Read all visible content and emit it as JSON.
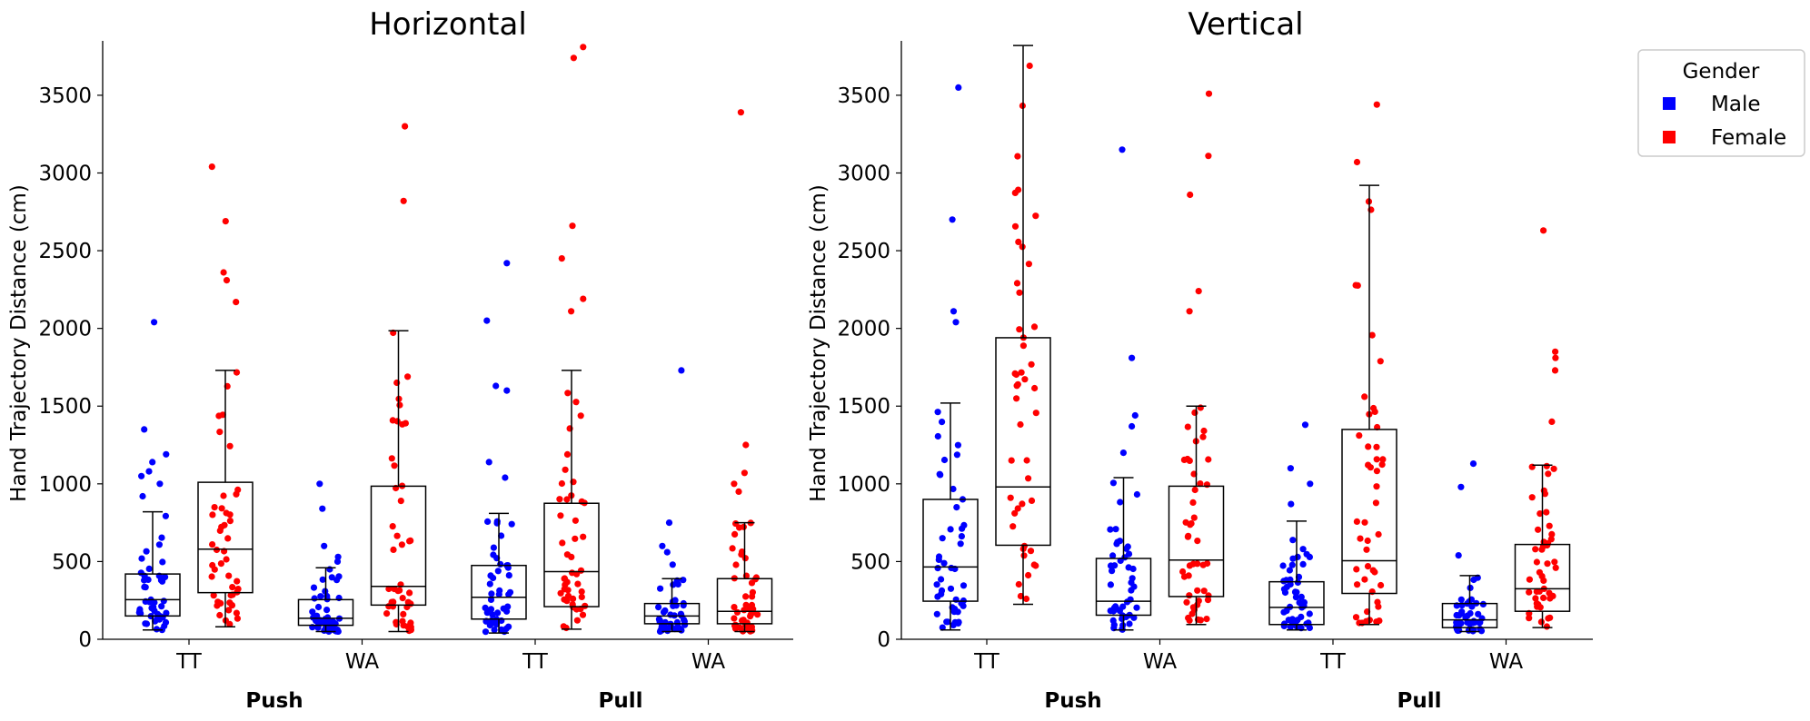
{
  "colors": {
    "male": "#0000ff",
    "female": "#ff0000"
  },
  "legend": {
    "title": "Gender",
    "placement": "upper-right-outside",
    "items": [
      {
        "label": "Male",
        "color": "#0000ff"
      },
      {
        "label": "Female",
        "color": "#ff0000"
      }
    ]
  },
  "chart_data": [
    {
      "type": "box",
      "title": "Horizontal",
      "ylabel": "Hand Trajectory Distance (cm)",
      "ylim": [
        0,
        3850
      ],
      "yticks": [
        0,
        500,
        1000,
        1500,
        2000,
        2500,
        3000,
        3500
      ],
      "categories": [
        "TT",
        "WA",
        "TT",
        "WA"
      ],
      "groups": [
        "Push",
        "Pull"
      ],
      "series": [
        {
          "name": "Male",
          "boxes": [
            {
              "category": "TT",
              "group": "Push",
              "whisker_low": 60,
              "q1": 150,
              "median": 255,
              "q3": 420,
              "whisker_high": 820,
              "outliers": [
                920,
                1000,
                1050,
                1080,
                1140,
                1190,
                1350,
                2040
              ]
            },
            {
              "category": "WA",
              "group": "Push",
              "whisker_low": 50,
              "q1": 90,
              "median": 135,
              "q3": 255,
              "whisker_high": 460,
              "outliers": [
                500,
                530,
                600,
                840,
                1000
              ]
            },
            {
              "category": "TT",
              "group": "Pull",
              "whisker_low": 40,
              "q1": 130,
              "median": 270,
              "q3": 475,
              "whisker_high": 810,
              "outliers": [
                1040,
                1140,
                1600,
                1630,
                2050,
                2420
              ]
            },
            {
              "category": "WA",
              "group": "Pull",
              "whisker_low": 50,
              "q1": 100,
              "median": 150,
              "q3": 230,
              "whisker_high": 390,
              "outliers": [
                480,
                560,
                600,
                750,
                1730
              ]
            }
          ]
        },
        {
          "name": "Female",
          "boxes": [
            {
              "category": "TT",
              "group": "Push",
              "whisker_low": 80,
              "q1": 300,
              "median": 580,
              "q3": 1010,
              "whisker_high": 1730,
              "outliers": [
                2170,
                2310,
                2360,
                2690,
                3040
              ]
            },
            {
              "category": "WA",
              "group": "Push",
              "whisker_low": 50,
              "q1": 220,
              "median": 340,
              "q3": 985,
              "whisker_high": 1985,
              "outliers": [
                2820,
                3300
              ]
            },
            {
              "category": "TT",
              "group": "Pull",
              "whisker_low": 65,
              "q1": 210,
              "median": 435,
              "q3": 875,
              "whisker_high": 1730,
              "outliers": [
                2110,
                2190,
                2450,
                2660,
                3740,
                3810
              ]
            },
            {
              "category": "WA",
              "group": "Pull",
              "whisker_low": 50,
              "q1": 100,
              "median": 180,
              "q3": 390,
              "whisker_high": 750,
              "outliers": [
                950,
                1000,
                1070,
                1250,
                3390
              ]
            }
          ]
        }
      ]
    },
    {
      "type": "box",
      "title": "Vertical",
      "ylabel": "Hand Trajectory Distance (cm)",
      "ylim": [
        0,
        3850
      ],
      "yticks": [
        0,
        500,
        1000,
        1500,
        2000,
        2500,
        3000,
        3500
      ],
      "categories": [
        "TT",
        "WA",
        "TT",
        "WA"
      ],
      "groups": [
        "Push",
        "Pull"
      ],
      "series": [
        {
          "name": "Male",
          "boxes": [
            {
              "category": "TT",
              "group": "Push",
              "whisker_low": 60,
              "q1": 245,
              "median": 465,
              "q3": 900,
              "whisker_high": 1520,
              "outliers": [
                2040,
                2110,
                2700,
                3550
              ]
            },
            {
              "category": "WA",
              "group": "Push",
              "whisker_low": 60,
              "q1": 155,
              "median": 245,
              "q3": 520,
              "whisker_high": 1040,
              "outliers": [
                1200,
                1370,
                1440,
                1810,
                3150
              ]
            },
            {
              "category": "TT",
              "group": "Pull",
              "whisker_low": 60,
              "q1": 95,
              "median": 205,
              "q3": 370,
              "whisker_high": 760,
              "outliers": [
                870,
                1000,
                1100,
                1380
              ]
            },
            {
              "category": "WA",
              "group": "Pull",
              "whisker_low": 50,
              "q1": 75,
              "median": 125,
              "q3": 230,
              "whisker_high": 410,
              "outliers": [
                540,
                980,
                1130
              ]
            }
          ]
        },
        {
          "name": "Female",
          "boxes": [
            {
              "category": "TT",
              "group": "Push",
              "whisker_low": 225,
              "q1": 605,
              "median": 980,
              "q3": 1940,
              "whisker_high": 3820,
              "outliers": []
            },
            {
              "category": "WA",
              "group": "Push",
              "whisker_low": 95,
              "q1": 275,
              "median": 510,
              "q3": 985,
              "whisker_high": 1500,
              "outliers": [
                2110,
                2240,
                2860,
                3110,
                3510
              ]
            },
            {
              "category": "TT",
              "group": "Pull",
              "whisker_low": 95,
              "q1": 295,
              "median": 505,
              "q3": 1350,
              "whisker_high": 2920,
              "outliers": [
                3070,
                3440
              ]
            },
            {
              "category": "WA",
              "group": "Pull",
              "whisker_low": 75,
              "q1": 180,
              "median": 325,
              "q3": 610,
              "whisker_high": 1120,
              "outliers": [
                1400,
                1730,
                1810,
                1850,
                2630
              ]
            }
          ]
        }
      ]
    }
  ]
}
